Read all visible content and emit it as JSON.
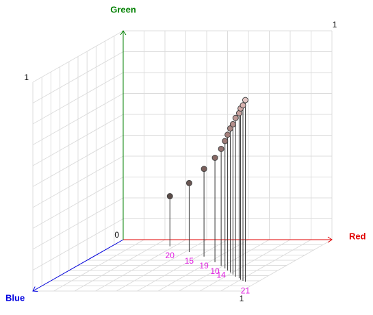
{
  "chart_data": {
    "type": "scatter3d",
    "xlabel": "Red",
    "ylabel": "Green",
    "zlabel": "Blue",
    "xlim": [
      0,
      1
    ],
    "ylim": [
      0,
      1
    ],
    "zlim": [
      0,
      1
    ],
    "xticks": [
      1
    ],
    "yticks": [
      0,
      1
    ],
    "zticks": [
      1
    ],
    "grid": true,
    "axis_colors": {
      "x": "#e00000",
      "y": "#008000",
      "z": "#0000e0"
    },
    "label_color": "#e020e0",
    "x": [
      0.28,
      0.42,
      0.53,
      0.63,
      0.69,
      0.73,
      0.76,
      0.79,
      0.82,
      0.85,
      0.88,
      0.9,
      0.92,
      0.94
    ],
    "y": [
      0.24,
      0.33,
      0.42,
      0.5,
      0.56,
      0.61,
      0.65,
      0.69,
      0.72,
      0.76,
      0.79,
      0.82,
      0.84,
      0.87
    ],
    "z": [
      0.13,
      0.24,
      0.33,
      0.44,
      0.51,
      0.56,
      0.6,
      0.64,
      0.68,
      0.72,
      0.75,
      0.78,
      0.8,
      0.82
    ],
    "colors": [
      "#5a4c48",
      "#6a5652",
      "#7a605c",
      "#886a66",
      "#947370",
      "#9c7a76",
      "#a4807c",
      "#ab8884",
      "#b48f8b",
      "#bd9894",
      "#c6a09c",
      "#cfa8a5",
      "#d8b2af",
      "#e2c6c4"
    ],
    "labels": [
      "20",
      "15",
      "19",
      "10",
      "14",
      null,
      null,
      null,
      null,
      null,
      null,
      null,
      null,
      "21"
    ]
  }
}
